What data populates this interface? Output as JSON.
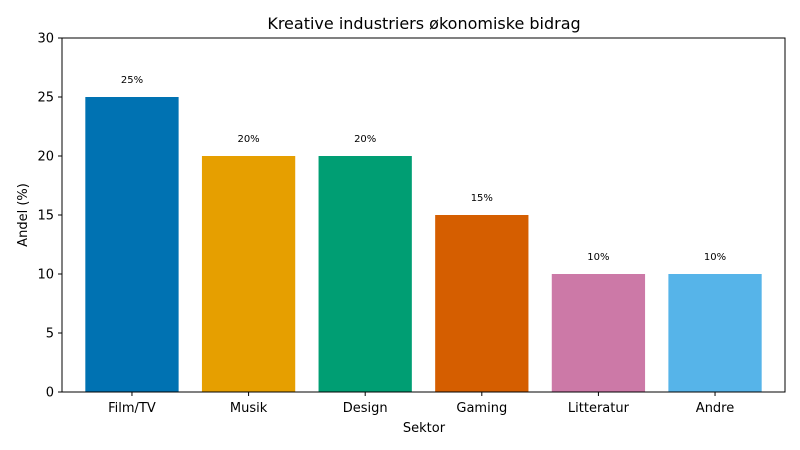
{
  "chart_data": {
    "type": "bar",
    "title": "Kreative industriers økonomiske bidrag",
    "xlabel": "Sektor",
    "ylabel": "Andel (%)",
    "categories": [
      "Film/TV",
      "Musik",
      "Design",
      "Gaming",
      "Litteratur",
      "Andre"
    ],
    "values": [
      25,
      20,
      20,
      15,
      10,
      10
    ],
    "data_labels": [
      "25%",
      "20%",
      "20%",
      "15%",
      "10%",
      "10%"
    ],
    "colors": [
      "#0072b2",
      "#e69f00",
      "#009e73",
      "#d55e00",
      "#cc79a7",
      "#56b4e9"
    ],
    "ylim": [
      0,
      30
    ],
    "yticks": [
      0,
      5,
      10,
      15,
      20,
      25,
      30
    ],
    "grid": false,
    "legend": "none"
  }
}
